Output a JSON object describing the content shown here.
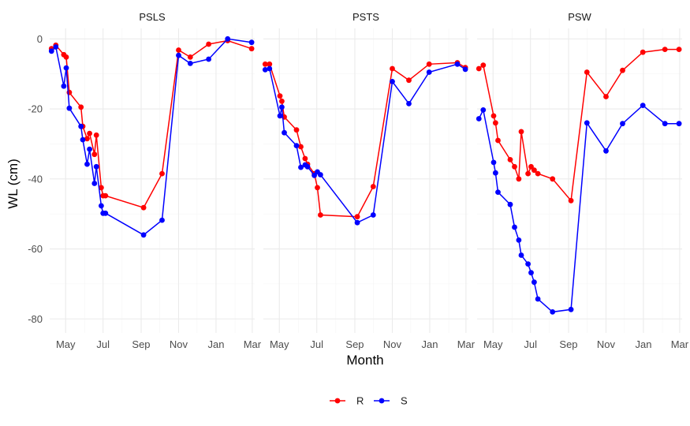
{
  "colors": {
    "R": "#ff0000",
    "S": "#0000ff"
  },
  "chart_data": {
    "type": "line",
    "xlabel": "Month",
    "ylabel": "WL (cm)",
    "ylim": [
      -84,
      3
    ],
    "yticks": [
      0,
      -20,
      -40,
      -60,
      -80
    ],
    "ytick_labels": [
      "0",
      "-20",
      "-40",
      "-60",
      "-80"
    ],
    "xlim": [
      "2021-04-05",
      "2022-03-05"
    ],
    "xticks": [
      "2021-05-01",
      "2021-07-01",
      "2021-09-01",
      "2021-11-01",
      "2022-01-01",
      "2022-03-01"
    ],
    "xtick_labels": [
      "May",
      "Jul",
      "Sep",
      "Nov",
      "Jan",
      "Mar"
    ],
    "grid": true,
    "legend_position": "bottom",
    "legend": [
      "R",
      "S"
    ],
    "panels": [
      {
        "title": "PSLS",
        "series": [
          {
            "name": "R",
            "x": [
              "2021-04-08",
              "2021-04-15",
              "2021-04-28",
              "2021-05-02",
              "2021-05-07",
              "2021-05-26",
              "2021-05-29",
              "2021-06-05",
              "2021-06-09",
              "2021-06-17",
              "2021-06-20",
              "2021-06-28",
              "2021-07-01",
              "2021-07-05",
              "2021-09-05",
              "2021-10-05",
              "2021-11-01",
              "2021-11-20",
              "2021-12-20",
              "2022-01-20",
              "2022-02-28"
            ],
            "y": [
              -2.8,
              -1.8,
              -4.5,
              -5.2,
              -15.3,
              -19.5,
              -25,
              -28.5,
              -27,
              -33,
              -27.5,
              -42.5,
              -44.8,
              -44.8,
              -48.2,
              -38.5,
              -3.2,
              -5.2,
              -1.5,
              -0.5,
              -2.8
            ]
          },
          {
            "name": "S",
            "x": [
              "2021-04-08",
              "2021-04-15",
              "2021-04-28",
              "2021-05-02",
              "2021-05-07",
              "2021-05-26",
              "2021-05-29",
              "2021-06-05",
              "2021-06-09",
              "2021-06-17",
              "2021-06-20",
              "2021-06-28",
              "2021-07-01",
              "2021-07-05",
              "2021-09-05",
              "2021-10-05",
              "2021-11-01",
              "2021-11-20",
              "2021-12-20",
              "2022-01-20",
              "2022-02-28"
            ],
            "y": [
              -3.5,
              -2.3,
              -13.5,
              -8.3,
              -19.8,
              -25,
              -28.8,
              -35.8,
              -31.5,
              -41.3,
              -36.5,
              -47.7,
              -49.8,
              -49.8,
              -56,
              -51.8,
              -4.7,
              -7,
              -5.8,
              0,
              -1
            ]
          }
        ]
      },
      {
        "title": "PSTS",
        "series": [
          {
            "name": "R",
            "x": [
              "2021-04-08",
              "2021-04-15",
              "2021-05-02",
              "2021-05-05",
              "2021-05-09",
              "2021-05-29",
              "2021-06-05",
              "2021-06-12",
              "2021-06-16",
              "2021-06-27",
              "2021-07-02",
              "2021-07-07",
              "2021-09-05",
              "2021-10-01",
              "2021-11-01",
              "2021-11-28",
              "2021-12-31",
              "2022-02-15",
              "2022-02-28"
            ],
            "y": [
              -7.2,
              -7.2,
              -16.3,
              -17.8,
              -22.3,
              -26,
              -30.8,
              -34.2,
              -35.8,
              -38.5,
              -42.5,
              -50.3,
              -50.8,
              -42.2,
              -8.5,
              -11.8,
              -7.2,
              -6.8,
              -8.2
            ]
          },
          {
            "name": "S",
            "x": [
              "2021-04-08",
              "2021-04-15",
              "2021-05-02",
              "2021-05-05",
              "2021-05-09",
              "2021-05-29",
              "2021-06-05",
              "2021-06-12",
              "2021-06-16",
              "2021-06-27",
              "2021-07-02",
              "2021-07-07",
              "2021-09-05",
              "2021-10-01",
              "2021-11-01",
              "2021-11-28",
              "2021-12-31",
              "2022-02-15",
              "2022-02-28"
            ],
            "y": [
              -8.8,
              -8.5,
              -22,
              -19.5,
              -26.8,
              -30.5,
              -36.7,
              -36,
              -36.5,
              -39,
              -38,
              -38.8,
              -52.5,
              -50.3,
              -12.2,
              -18.5,
              -9.5,
              -7.2,
              -8.7
            ]
          }
        ]
      },
      {
        "title": "PSW",
        "series": [
          {
            "name": "R",
            "x": [
              "2021-04-08",
              "2021-04-15",
              "2021-05-02",
              "2021-05-05",
              "2021-05-09",
              "2021-05-29",
              "2021-06-05",
              "2021-06-12",
              "2021-06-16",
              "2021-06-27",
              "2021-07-02",
              "2021-07-07",
              "2021-07-13",
              "2021-08-06",
              "2021-09-05",
              "2021-10-01",
              "2021-11-01",
              "2021-11-28",
              "2021-12-31",
              "2022-02-05",
              "2022-02-28"
            ],
            "y": [
              -8.5,
              -7.5,
              -22,
              -24,
              -29,
              -34.5,
              -36.5,
              -40,
              -26.5,
              -38.5,
              -36.5,
              -37.5,
              -38.5,
              -40,
              -46.2,
              -9.5,
              -16.5,
              -9,
              -3.8,
              -3,
              -3
            ]
          },
          {
            "name": "S",
            "x": [
              "2021-04-08",
              "2021-04-15",
              "2021-05-02",
              "2021-05-05",
              "2021-05-09",
              "2021-05-29",
              "2021-06-05",
              "2021-06-12",
              "2021-06-16",
              "2021-06-27",
              "2021-07-02",
              "2021-07-07",
              "2021-07-13",
              "2021-08-06",
              "2021-09-05",
              "2021-10-01",
              "2021-11-01",
              "2021-11-28",
              "2021-12-31",
              "2022-02-05",
              "2022-02-28"
            ],
            "y": [
              -22.8,
              -20.3,
              -35.3,
              -38.3,
              -43.8,
              -47.3,
              -53.8,
              -57.5,
              -61.8,
              -64.3,
              -66.8,
              -69.5,
              -74.3,
              -78,
              -77.3,
              -24,
              -32,
              -24.2,
              -19,
              -24.2,
              -24.2
            ]
          }
        ]
      }
    ]
  }
}
